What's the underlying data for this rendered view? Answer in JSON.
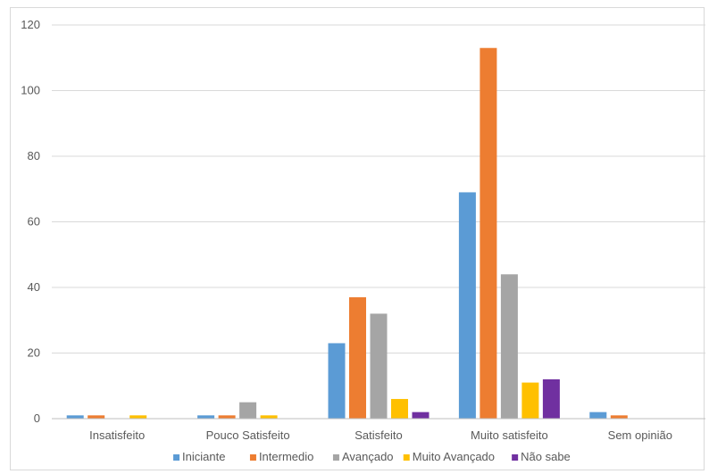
{
  "chart_data": {
    "type": "bar",
    "categories": [
      "Insatisfeito",
      "Pouco Satisfeito",
      "Satisfeito",
      "Muito satisfeito",
      "Sem opinião"
    ],
    "series": [
      {
        "name": "Iniciante",
        "color": "#5b9bd5",
        "values": [
          1,
          1,
          23,
          69,
          2
        ]
      },
      {
        "name": "Intermedio",
        "color": "#ed7d31",
        "values": [
          1,
          1,
          37,
          113,
          1
        ]
      },
      {
        "name": "Avançado",
        "color": "#a5a5a5",
        "values": [
          0,
          5,
          32,
          44,
          0
        ]
      },
      {
        "name": "Muito Avançado",
        "color": "#ffc000",
        "values": [
          1,
          1,
          6,
          11,
          0
        ]
      },
      {
        "name": "Não sabe",
        "color": "#7030a0",
        "values": [
          0,
          0,
          2,
          12,
          0
        ]
      }
    ],
    "yticks": [
      "0",
      "20",
      "40",
      "60",
      "80",
      "100",
      "120"
    ],
    "ylim": [
      0,
      120
    ],
    "grid": true,
    "legend_position": "bottom"
  }
}
